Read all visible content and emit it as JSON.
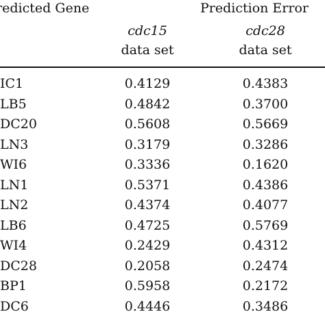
{
  "table": {
    "header": {
      "gene": "redicted Gene",
      "error": "Prediction Error",
      "cdc15_name": "cdc15",
      "cdc28_name": "cdc28",
      "dataset_suffix": "data set"
    },
    "rows": [
      {
        "gene": "IC1",
        "cdc15": "0.4129",
        "cdc28": "0.4383"
      },
      {
        "gene": "LB5",
        "cdc15": "0.4842",
        "cdc28": "0.3700"
      },
      {
        "gene": "DC20",
        "cdc15": "0.5608",
        "cdc28": "0.5669"
      },
      {
        "gene": "LN3",
        "cdc15": "0.3179",
        "cdc28": "0.3286"
      },
      {
        "gene": "WI6",
        "cdc15": "0.3336",
        "cdc28": "0.1620"
      },
      {
        "gene": "LN1",
        "cdc15": "0.5371",
        "cdc28": "0.4386"
      },
      {
        "gene": "LN2",
        "cdc15": "0.4374",
        "cdc28": "0.4077"
      },
      {
        "gene": "LB6",
        "cdc15": "0.4725",
        "cdc28": "0.5769"
      },
      {
        "gene": "WI4",
        "cdc15": "0.2429",
        "cdc28": "0.4312"
      },
      {
        "gene": "DC28",
        "cdc15": "0.2058",
        "cdc28": "0.2474"
      },
      {
        "gene": "BP1",
        "cdc15": "0.5958",
        "cdc28": "0.2172"
      },
      {
        "gene": "DC6",
        "cdc15": "0.4446",
        "cdc28": "0.3486"
      }
    ]
  }
}
